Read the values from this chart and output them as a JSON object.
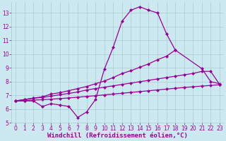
{
  "line1_x": [
    0,
    1,
    2,
    3,
    4,
    5,
    6,
    7,
    8,
    9,
    10,
    11,
    12,
    13,
    14,
    15,
    16,
    17,
    18
  ],
  "line1_y": [
    6.6,
    6.6,
    6.6,
    6.2,
    6.4,
    6.3,
    6.2,
    5.4,
    5.8,
    6.7,
    8.9,
    10.5,
    12.4,
    13.2,
    13.45,
    13.2,
    13.0,
    11.5,
    10.3
  ],
  "line2_x": [
    0,
    1,
    2,
    3,
    4,
    5,
    6,
    7,
    8,
    9,
    10,
    11,
    12,
    13,
    14,
    15,
    16,
    17,
    18,
    21,
    22,
    23
  ],
  "line2_y": [
    6.6,
    6.7,
    6.8,
    6.9,
    7.1,
    7.2,
    7.35,
    7.5,
    7.65,
    7.85,
    8.05,
    8.3,
    8.6,
    8.8,
    9.05,
    9.3,
    9.6,
    9.85,
    10.3,
    8.95,
    8.0,
    7.85
  ],
  "line3_x": [
    0,
    1,
    2,
    3,
    4,
    5,
    6,
    7,
    8,
    9,
    10,
    11,
    12,
    13,
    14,
    15,
    16,
    17,
    18,
    19,
    20,
    21,
    22,
    23
  ],
  "line3_y": [
    6.6,
    6.7,
    6.8,
    6.85,
    6.95,
    7.05,
    7.15,
    7.25,
    7.4,
    7.5,
    7.6,
    7.7,
    7.8,
    7.9,
    8.0,
    8.1,
    8.2,
    8.3,
    8.4,
    8.5,
    8.6,
    8.75,
    8.75,
    7.8
  ],
  "line4_x": [
    0,
    1,
    2,
    3,
    4,
    5,
    6,
    7,
    8,
    9,
    10,
    11,
    12,
    13,
    14,
    15,
    16,
    17,
    18,
    19,
    20,
    21,
    22,
    23
  ],
  "line4_y": [
    6.6,
    6.63,
    6.66,
    6.69,
    6.73,
    6.77,
    6.82,
    6.87,
    6.93,
    6.98,
    7.04,
    7.1,
    7.16,
    7.22,
    7.28,
    7.34,
    7.4,
    7.46,
    7.52,
    7.58,
    7.63,
    7.68,
    7.73,
    7.78
  ],
  "xlim": [
    -0.5,
    23.5
  ],
  "ylim": [
    5.0,
    13.8
  ],
  "yticks": [
    5,
    6,
    7,
    8,
    9,
    10,
    11,
    12,
    13
  ],
  "xticks": [
    0,
    1,
    2,
    3,
    4,
    5,
    6,
    7,
    8,
    9,
    10,
    11,
    12,
    13,
    14,
    15,
    16,
    17,
    18,
    19,
    20,
    21,
    22,
    23
  ],
  "xlabel": "Windchill (Refroidissement éolien,°C)",
  "line_color": "#990099",
  "background_color": "#cce8f0",
  "grid_color": "#aacccc",
  "tick_color": "#990099",
  "label_color": "#990099",
  "xlabel_fontsize": 6.5,
  "tick_fontsize": 5.5,
  "linewidth": 0.9,
  "markersize": 2.5
}
